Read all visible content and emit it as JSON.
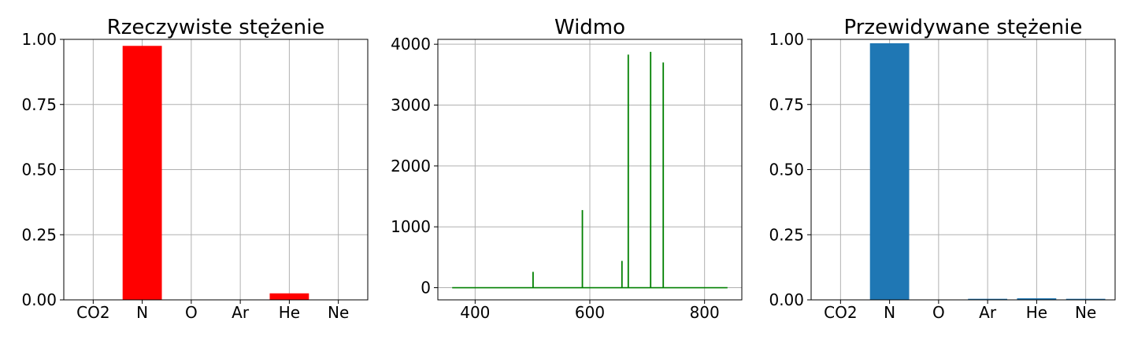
{
  "chart_data": [
    {
      "type": "bar",
      "title": "Rzeczywiste stężenie",
      "categories": [
        "CO2",
        "N",
        "O",
        "Ar",
        "He",
        "Ne"
      ],
      "values": [
        0.0,
        0.975,
        0.0,
        0.0,
        0.025,
        0.0
      ],
      "ylim": [
        0,
        1.0
      ],
      "yticks": [
        "0.00",
        "0.25",
        "0.50",
        "0.75",
        "1.00"
      ],
      "color": "#ff0000",
      "grid": true
    },
    {
      "type": "line",
      "title": "Widmo",
      "xlim": [
        335,
        865
      ],
      "ylim": [
        -200,
        4080
      ],
      "xticks": [
        400,
        600,
        800
      ],
      "yticks": [
        0,
        1000,
        2000,
        3000,
        4000
      ],
      "color": "#008000",
      "grid": true,
      "baseline_range": [
        360,
        840
      ],
      "peaks": [
        {
          "x": 388,
          "y": 5
        },
        {
          "x": 501,
          "y": 260
        },
        {
          "x": 587,
          "y": 1275
        },
        {
          "x": 656,
          "y": 440
        },
        {
          "x": 667,
          "y": 3830
        },
        {
          "x": 706,
          "y": 3875
        },
        {
          "x": 728,
          "y": 3700
        }
      ]
    },
    {
      "type": "bar",
      "title": "Przewidywane stężenie",
      "categories": [
        "CO2",
        "N",
        "O",
        "Ar",
        "He",
        "Ne"
      ],
      "values": [
        0.0,
        0.985,
        0.0,
        0.004,
        0.006,
        0.004
      ],
      "ylim": [
        0,
        1.0
      ],
      "yticks": [
        "0.00",
        "0.25",
        "0.50",
        "0.75",
        "1.00"
      ],
      "color": "#1f77b4",
      "grid": true
    }
  ]
}
